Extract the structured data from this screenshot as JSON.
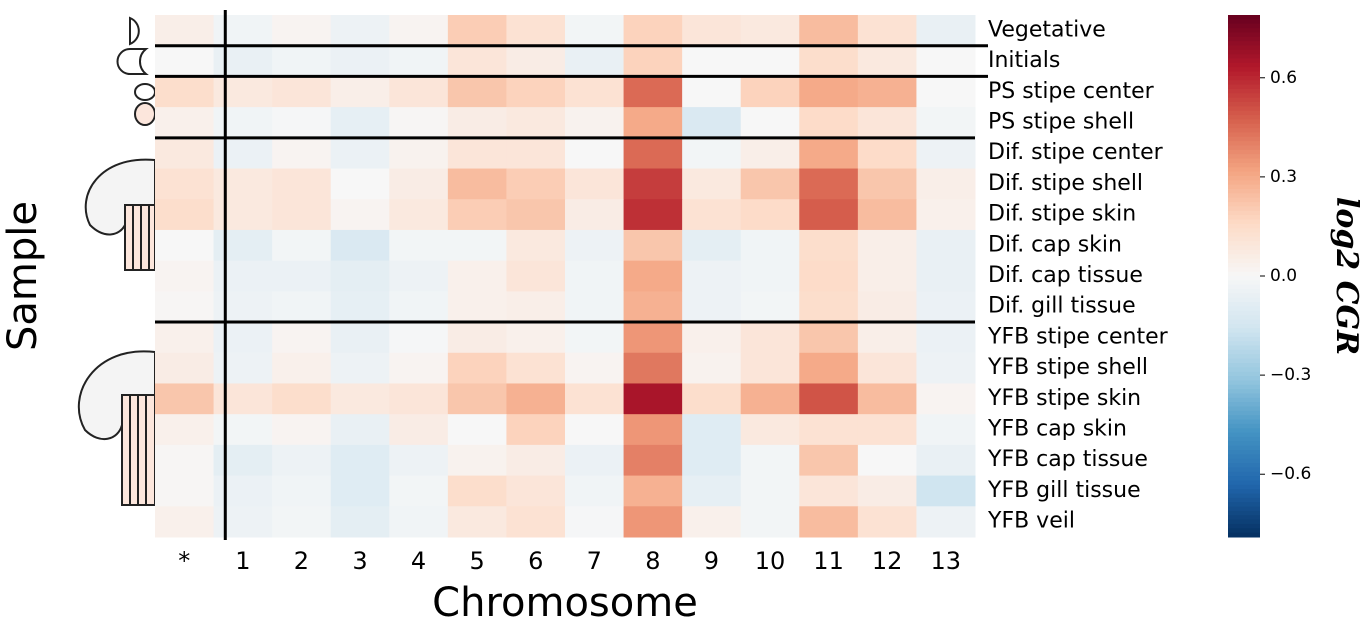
{
  "chart_data": {
    "type": "heatmap",
    "xlabel": "Chromosome",
    "ylabel": "Sample",
    "colorbar_label": "log2 CGR",
    "x_categories": [
      "*",
      "1",
      "2",
      "3",
      "4",
      "5",
      "6",
      "7",
      "8",
      "9",
      "10",
      "11",
      "12",
      "13"
    ],
    "y_categories": [
      "Vegetative",
      "Initials",
      "PS stipe center",
      "PS stipe shell",
      "Dif. stipe center",
      "Dif. stipe shell",
      "Dif. stipe skin",
      "Dif. cap skin",
      "Dif. cap tissue",
      "Dif. gill tissue",
      "YFB stipe center",
      "YFB stipe shell",
      "YFB stipe skin",
      "YFB cap skin",
      "YFB cap tissue",
      "YFB gill tissue",
      "YFB veil"
    ],
    "values": [
      [
        0.05,
        -0.03,
        0.02,
        -0.04,
        0.02,
        0.2,
        0.12,
        -0.02,
        0.18,
        0.1,
        0.08,
        0.25,
        0.12,
        -0.06
      ],
      [
        0.0,
        -0.06,
        -0.03,
        -0.05,
        -0.03,
        0.1,
        0.06,
        -0.06,
        0.18,
        0.0,
        0.0,
        0.14,
        0.08,
        0.0
      ],
      [
        0.14,
        0.08,
        0.1,
        0.05,
        0.1,
        0.22,
        0.18,
        0.12,
        0.45,
        0.0,
        0.18,
        0.3,
        0.28,
        0.0
      ],
      [
        0.04,
        -0.03,
        -0.01,
        -0.07,
        0.01,
        0.06,
        0.08,
        0.03,
        0.3,
        -0.12,
        0.0,
        0.15,
        0.1,
        -0.02
      ],
      [
        0.08,
        -0.05,
        0.02,
        -0.05,
        0.03,
        0.1,
        0.1,
        0.0,
        0.45,
        -0.02,
        0.05,
        0.3,
        0.15,
        -0.04
      ],
      [
        0.12,
        0.08,
        0.1,
        0.0,
        0.06,
        0.25,
        0.2,
        0.1,
        0.55,
        0.08,
        0.22,
        0.45,
        0.22,
        0.05
      ],
      [
        0.14,
        0.08,
        0.1,
        0.02,
        0.08,
        0.2,
        0.22,
        0.06,
        0.58,
        0.12,
        0.15,
        0.48,
        0.25,
        0.04
      ],
      [
        0.0,
        -0.08,
        -0.02,
        -0.12,
        -0.02,
        -0.02,
        0.08,
        -0.04,
        0.22,
        -0.08,
        -0.03,
        0.14,
        0.05,
        -0.06
      ],
      [
        0.02,
        -0.05,
        -0.05,
        -0.08,
        -0.04,
        0.04,
        0.1,
        -0.03,
        0.3,
        -0.04,
        -0.03,
        0.15,
        0.05,
        -0.06
      ],
      [
        0.01,
        -0.04,
        -0.03,
        -0.07,
        -0.03,
        0.04,
        0.05,
        -0.03,
        0.28,
        -0.04,
        -0.02,
        0.14,
        0.06,
        -0.05
      ],
      [
        0.04,
        -0.05,
        0.02,
        -0.06,
        -0.01,
        0.06,
        0.04,
        -0.02,
        0.35,
        0.04,
        0.1,
        0.22,
        0.05,
        -0.05
      ],
      [
        0.06,
        -0.04,
        0.04,
        -0.04,
        0.02,
        0.18,
        0.12,
        0.02,
        0.42,
        0.03,
        0.1,
        0.3,
        0.1,
        -0.04
      ],
      [
        0.22,
        0.1,
        0.14,
        0.08,
        0.1,
        0.22,
        0.28,
        0.12,
        0.65,
        0.14,
        0.28,
        0.5,
        0.25,
        0.02
      ],
      [
        0.04,
        -0.02,
        0.02,
        -0.06,
        0.06,
        0.0,
        0.18,
        0.0,
        0.35,
        -0.1,
        0.08,
        0.12,
        0.12,
        -0.03
      ],
      [
        0.01,
        -0.08,
        -0.04,
        -0.1,
        -0.04,
        0.03,
        0.06,
        -0.05,
        0.4,
        -0.1,
        -0.02,
        0.22,
        0.0,
        -0.06
      ],
      [
        0.01,
        -0.05,
        -0.03,
        -0.1,
        -0.02,
        0.14,
        0.1,
        -0.03,
        0.28,
        -0.07,
        -0.02,
        0.1,
        0.06,
        -0.16
      ],
      [
        0.04,
        -0.04,
        -0.02,
        -0.08,
        -0.03,
        0.08,
        0.12,
        -0.01,
        0.35,
        0.04,
        -0.02,
        0.25,
        0.12,
        -0.04
      ]
    ],
    "zlim": [
      -0.79,
      0.79
    ],
    "zticks": [
      0.6,
      0.3,
      {
        "value": 0,
        "label": "0.0"
      },
      {
        "value": -0.3,
        "label": "−0.3"
      },
      {
        "value": -0.6,
        "label": "−0.6"
      }
    ],
    "colors": [
      "#053061",
      "#2166ac",
      "#4393c3",
      "#92c5de",
      "#d1e5f0",
      "#f7f7f7",
      "#fddbc7",
      "#f4a582",
      "#d6604d",
      "#b2182b",
      "#67001f"
    ]
  }
}
